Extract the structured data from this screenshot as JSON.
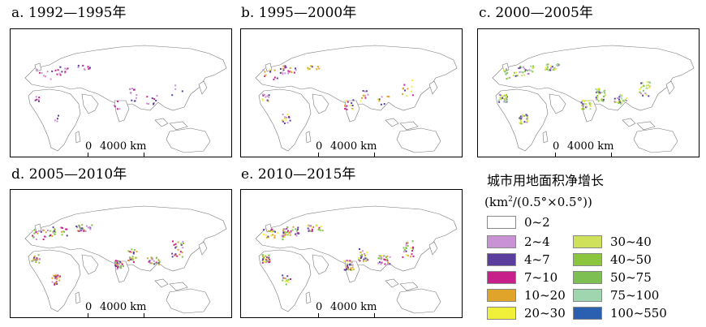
{
  "panels": [
    {
      "title": "a. 1992—1995年",
      "scale_zero": "0",
      "scale_label": "4000 km"
    },
    {
      "title": "b. 1995—2000年",
      "scale_zero": "0",
      "scale_label": "4000 km"
    },
    {
      "title": "c. 2000—2005年",
      "scale_zero": "0",
      "scale_label": "4000 km"
    },
    {
      "title": "d. 2005—2010年",
      "scale_zero": "0",
      "scale_label": "4000 km"
    },
    {
      "title": "e. 2010—2015年",
      "scale_zero": "0",
      "scale_label": "4000 km"
    }
  ],
  "legend": {
    "title": "城市用地面积净增长",
    "unit_prefix": "(km",
    "unit_sup": "2",
    "unit_suffix": "/(0.5°×0.5°))",
    "items": [
      {
        "label": "0~2",
        "color": "#ffffff"
      },
      {
        "label": "2~4",
        "color": "#c992d4"
      },
      {
        "label": "4~7",
        "color": "#5b3d9e"
      },
      {
        "label": "7~10",
        "color": "#c8208a"
      },
      {
        "label": "10~20",
        "color": "#e0a42a"
      },
      {
        "label": "20~30",
        "color": "#f0ef3a"
      },
      {
        "label": "30~40",
        "color": "#cfe05a"
      },
      {
        "label": "40~50",
        "color": "#8cc63f"
      },
      {
        "label": "50~75",
        "color": "#7dbf52"
      },
      {
        "label": "75~100",
        "color": "#9fd6b0"
      },
      {
        "label": "100~550",
        "color": "#2b5fb0"
      }
    ]
  }
}
